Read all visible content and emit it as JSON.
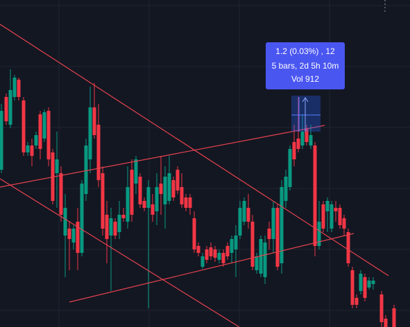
{
  "tooltip": {
    "lines": [
      "1.2 (0.03%) , 12",
      "5 bars, 2d 5h 10m",
      "Vol 912"
    ]
  }
}
